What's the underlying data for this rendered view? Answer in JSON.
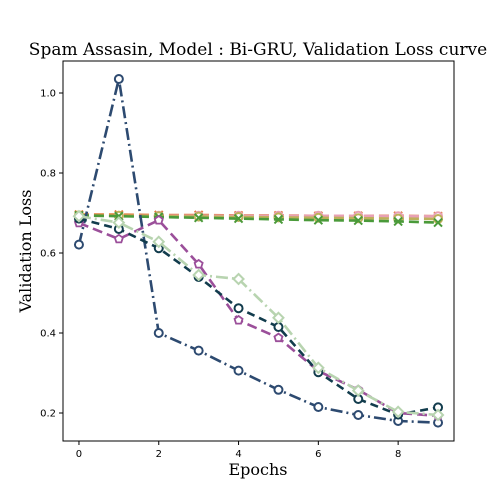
{
  "chart_data": {
    "type": "line",
    "title": "Spam Assasin, Model : Bi-GRU, Validation Loss curve",
    "xlabel": "Epochs",
    "ylabel": "Validation Loss",
    "xlim": [
      -0.4,
      9.4
    ],
    "ylim": [
      0.13,
      1.08
    ],
    "xticks": [
      0,
      2,
      4,
      6,
      8
    ],
    "yticks": [
      0.2,
      0.4,
      0.6,
      0.8,
      1.0
    ],
    "ytick_labels": [
      "0.2",
      "0.4",
      "0.6",
      "0.8",
      "1.0"
    ],
    "grid": false,
    "x": [
      0,
      1,
      2,
      3,
      4,
      5,
      6,
      7,
      8,
      9
    ],
    "series": [
      {
        "color": "#e07b39",
        "dash": "10,5",
        "marker": "x",
        "values": [
          0.696,
          0.696,
          0.695,
          0.695,
          0.694,
          0.694,
          0.693,
          0.693,
          0.693,
          0.692
        ]
      },
      {
        "color": "#e8a0b4",
        "dash": "10,5",
        "marker": "o",
        "values": [
          0.693,
          0.693,
          0.693,
          0.693,
          0.693,
          0.693,
          0.693,
          0.693,
          0.692,
          0.692
        ]
      },
      {
        "color": "#bdb05a",
        "dash": "10,5",
        "marker": "o",
        "values": [
          0.694,
          0.693,
          0.692,
          0.691,
          0.69,
          0.689,
          0.688,
          0.687,
          0.686,
          0.685
        ]
      },
      {
        "color": "#4a9a3a",
        "dash": "10,5",
        "marker": "x",
        "values": [
          0.694,
          0.692,
          0.69,
          0.688,
          0.686,
          0.684,
          0.682,
          0.681,
          0.679,
          0.676
        ]
      },
      {
        "color": "#2d4a70",
        "dash": "12,4,2,4",
        "marker": "o",
        "values": [
          0.621,
          1.035,
          0.4,
          0.356,
          0.306,
          0.258,
          0.215,
          0.195,
          0.18,
          0.176
        ]
      },
      {
        "color": "#9b4f9a",
        "dash": "10,5",
        "marker": "p",
        "values": [
          0.675,
          0.635,
          0.682,
          0.572,
          0.432,
          0.388,
          0.305,
          0.258,
          0.2,
          0.193
        ]
      },
      {
        "color": "#123c4d",
        "dash": "8,5",
        "marker": "o",
        "values": [
          0.686,
          0.66,
          0.612,
          0.54,
          0.462,
          0.415,
          0.302,
          0.235,
          0.196,
          0.214
        ]
      },
      {
        "color": "#b8d4b0",
        "dash": "12,4,2,4",
        "marker": "D",
        "values": [
          0.692,
          0.676,
          0.628,
          0.545,
          0.535,
          0.438,
          0.313,
          0.256,
          0.203,
          0.195
        ]
      }
    ]
  }
}
